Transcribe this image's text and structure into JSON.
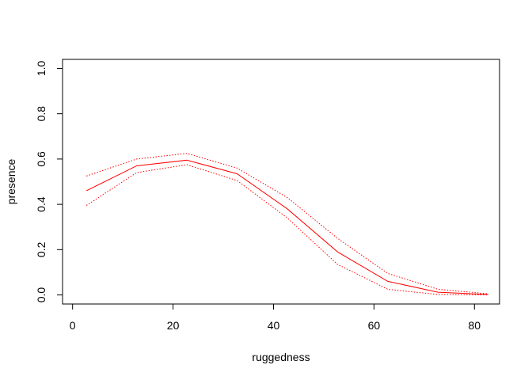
{
  "chart_data": {
    "type": "line",
    "title": "",
    "xlabel": "ruggedness",
    "ylabel": "presence",
    "xlim": [
      -2,
      85
    ],
    "ylim": [
      -0.04,
      1.04
    ],
    "x_ticks": [
      0,
      20,
      40,
      60,
      80
    ],
    "y_ticks": [
      0.0,
      0.2,
      0.4,
      0.6,
      0.8,
      1.0
    ],
    "x_tick_labels": [
      "0",
      "20",
      "40",
      "60",
      "80"
    ],
    "y_tick_labels": [
      "0.0",
      "0.2",
      "0.4",
      "0.6",
      "0.8",
      "1.0"
    ],
    "grid": false,
    "legend": "none",
    "x": [
      2.75,
      12.75,
      22.75,
      32.75,
      42.75,
      52.75,
      62.75,
      72.75,
      82.75
    ],
    "series": [
      {
        "role": "fit",
        "style": "solid",
        "color": "#ff0000",
        "values": [
          0.46,
          0.57,
          0.595,
          0.535,
          0.38,
          0.19,
          0.06,
          0.012,
          0.002
        ]
      },
      {
        "role": "upper",
        "style": "dotted",
        "color": "#ff0000",
        "values": [
          0.525,
          0.6,
          0.625,
          0.56,
          0.43,
          0.25,
          0.095,
          0.025,
          0.005
        ]
      },
      {
        "role": "lower",
        "style": "dotted",
        "color": "#ff0000",
        "values": [
          0.395,
          0.54,
          0.575,
          0.505,
          0.34,
          0.135,
          0.025,
          0.002,
          0.0
        ]
      }
    ]
  }
}
